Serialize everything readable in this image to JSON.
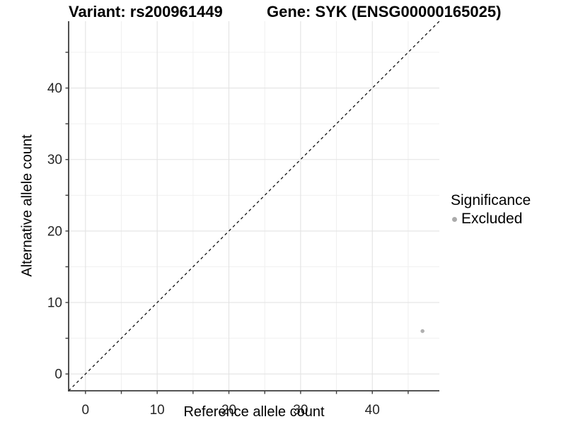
{
  "titles": {
    "left": "Variant: rs200961449",
    "right": "Gene: SYK (ENSG00000165025)"
  },
  "chart_data": {
    "type": "scatter",
    "title_left": "Variant: rs200961449",
    "title_right": "Gene: SYK (ENSG00000165025)",
    "xlabel": "Reference allele count",
    "ylabel": "Alternative allele count",
    "xlim": [
      -2.35,
      49.35
    ],
    "ylim": [
      -2.35,
      49.35
    ],
    "x_major_ticks": [
      0,
      10,
      20,
      30,
      40
    ],
    "y_major_ticks": [
      0,
      10,
      20,
      30,
      40
    ],
    "x_minor_ticks": [
      5,
      15,
      25,
      35,
      45
    ],
    "y_minor_ticks": [
      5,
      15,
      25,
      35,
      45
    ],
    "grid": "major-and-minor",
    "identity_line": {
      "slope": 1,
      "intercept": 0,
      "style": "dashed"
    },
    "points": [
      {
        "x": 47,
        "y": 6,
        "series": "Excluded"
      }
    ],
    "legend": {
      "title": "Significance",
      "position": "right",
      "items": [
        {
          "label": "Excluded",
          "color": "#ababab"
        }
      ]
    }
  },
  "colors": {
    "background": "#ffffff",
    "panel_background": "#ffffff",
    "axis_line": "#3c3c3c",
    "tick_mark": "#3c3c3c",
    "tick_label": "#262626",
    "grid_major": "#e3e3e3",
    "grid_minor": "#f0f0f0",
    "dashed_line": "#111111",
    "point": "#b0b0b0"
  }
}
